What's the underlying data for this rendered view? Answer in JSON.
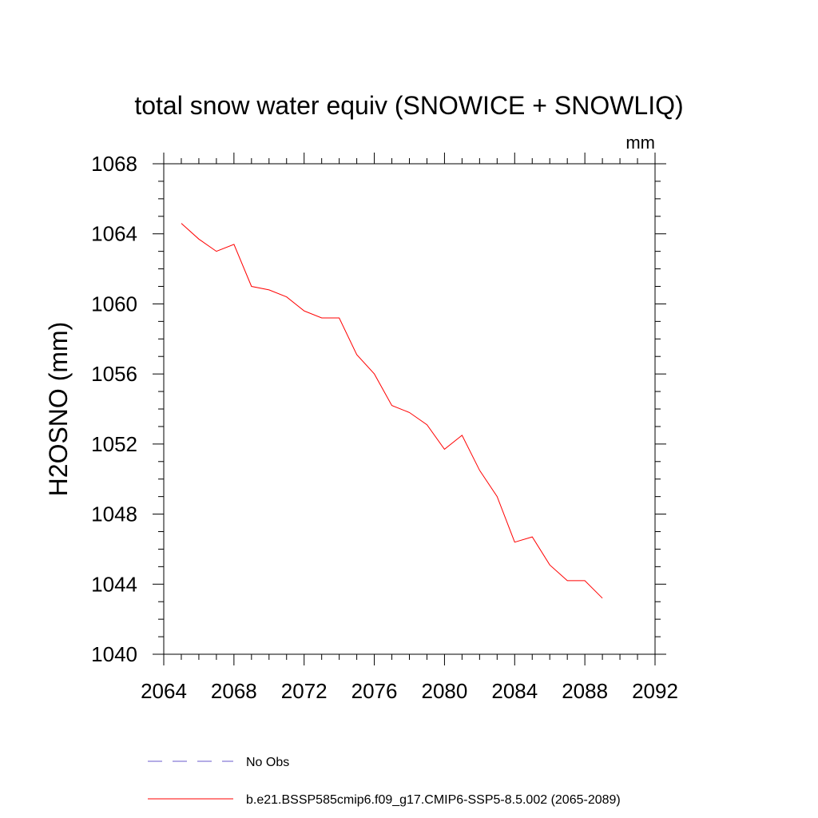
{
  "chart_data": {
    "type": "line",
    "title": "total snow water equiv (SNOWICE + SNOWLIQ)",
    "units": "mm",
    "ylabel": "H2OSNO  (mm)",
    "xlabel": "",
    "xlim": [
      2064,
      2092
    ],
    "ylim": [
      1040,
      1068
    ],
    "x_ticks": [
      "2064",
      "2068",
      "2072",
      "2076",
      "2080",
      "2084",
      "2088",
      "2092"
    ],
    "y_ticks": [
      "1040",
      "1044",
      "1048",
      "1052",
      "1056",
      "1060",
      "1064",
      "1068"
    ],
    "grid": false,
    "legend_position": "bottom",
    "series": [
      {
        "name": "b.e21.BSSP585cmip6.f09_g17.CMIP6-SSP5-8.5.002 (2065-2089)",
        "color": "#ff0000",
        "dash": "solid",
        "x": [
          2065,
          2066,
          2067,
          2068,
          2069,
          2070,
          2071,
          2072,
          2073,
          2074,
          2075,
          2076,
          2077,
          2078,
          2079,
          2080,
          2081,
          2082,
          2083,
          2084,
          2085,
          2086,
          2087,
          2088,
          2089
        ],
        "y": [
          1064.6,
          1063.7,
          1063.0,
          1063.4,
          1061.0,
          1060.8,
          1060.4,
          1059.6,
          1059.2,
          1059.2,
          1057.1,
          1056.0,
          1054.2,
          1053.8,
          1053.1,
          1051.7,
          1052.5,
          1050.5,
          1049.0,
          1046.4,
          1046.7,
          1045.1,
          1044.2,
          1044.2,
          1043.2
        ]
      }
    ],
    "legend": [
      {
        "label": "No Obs",
        "color": "#6a5acd",
        "dash": "dashed"
      },
      {
        "label": "b.e21.BSSP585cmip6.f09_g17.CMIP6-SSP5-8.5.002 (2065-2089)",
        "color": "#ff0000",
        "dash": "solid"
      }
    ]
  }
}
